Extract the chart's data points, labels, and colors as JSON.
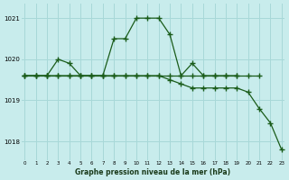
{
  "title": "Graphe pression niveau de la mer (hPa)",
  "bg_color": "#c8ecec",
  "grid_color": "#a8d8d8",
  "line_color": "#1a5c1a",
  "xmin": 0,
  "xmax": 23,
  "ylim": [
    1017.55,
    1021.35
  ],
  "yticks": [
    1018,
    1019,
    1020,
    1021
  ],
  "xticks": [
    0,
    1,
    2,
    3,
    4,
    5,
    6,
    7,
    8,
    9,
    10,
    11,
    12,
    13,
    14,
    15,
    16,
    17,
    18,
    19,
    20,
    21,
    22,
    23
  ],
  "s1": [
    1019.6,
    1019.6,
    1019.6,
    1020.0,
    1019.9,
    1019.6,
    1019.6,
    1019.6,
    1020.5,
    1020.5,
    1021.0,
    1021.0,
    1021.0,
    1020.6,
    1019.6,
    1019.9,
    1019.6,
    1019.6,
    1019.6,
    1019.6,
    null,
    null,
    null,
    null
  ],
  "s2": [
    1019.6,
    1019.6,
    1019.6,
    1019.6,
    1019.6,
    1019.6,
    1019.6,
    1019.6,
    1019.6,
    1019.6,
    1019.6,
    1019.6,
    1019.6,
    1019.5,
    1019.4,
    1019.3,
    1019.3,
    1019.3,
    1019.3,
    1019.3,
    1019.2,
    1018.8,
    1018.45,
    1017.8
  ],
  "s3": [
    1019.6,
    1019.6,
    1019.6,
    1019.6,
    1019.6,
    1019.6,
    1019.6,
    1019.6,
    1019.6,
    1019.6,
    1019.6,
    1019.6,
    1019.6,
    1019.6,
    1019.6,
    1019.6,
    1019.6,
    1019.6,
    1019.6,
    1019.6,
    1019.6,
    1019.6,
    null,
    null
  ]
}
